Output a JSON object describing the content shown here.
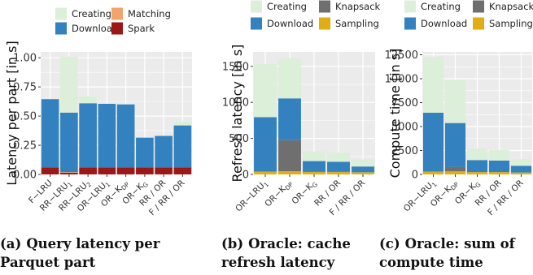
{
  "colors": {
    "Creating": "#dcefd9",
    "Matching": "#f4a469",
    "Download": "#3382bf",
    "Spark": "#9e1717",
    "Knapsack": "#6f6f6f",
    "Sampling": "#e0ad15",
    "panel_bg": "#ebebeb",
    "grid": "#ffffff"
  },
  "captions": [
    {
      "label": "(a)",
      "text": "Query latency per Parquet part"
    },
    {
      "label": "(b)",
      "text": "Oracle: cache refresh latency"
    },
    {
      "label": "(c)",
      "text": "Oracle: sum of compute time"
    }
  ],
  "chart_data": [
    {
      "type": "bar",
      "stacked": true,
      "grid": true,
      "legend_position": "top",
      "legend": [
        {
          "name": "Creating",
          "color_key": "Creating"
        },
        {
          "name": "Matching",
          "color_key": "Matching"
        },
        {
          "name": "Download",
          "color_key": "Download"
        },
        {
          "name": "Spark",
          "color_key": "Spark"
        }
      ],
      "ylabel": "Latency per part [in s]",
      "ylim": [
        0,
        1.05
      ],
      "yticks": [
        0.0,
        0.25,
        0.5,
        0.75,
        1.0
      ],
      "ytick_labels": [
        "0.00",
        "0.25",
        "0.50",
        "0.75",
        "1.00"
      ],
      "categories": [
        {
          "base": "F−LRU",
          "sub": ""
        },
        {
          "base": "RR−LRU",
          "sub": "1"
        },
        {
          "base": "RR−LRU",
          "sub": "2"
        },
        {
          "base": "OR−LRU",
          "sub": "1"
        },
        {
          "base": "OR−K",
          "sub": "DP"
        },
        {
          "base": "OR−K",
          "sub": "G"
        },
        {
          "base": "RR / OR",
          "sub": ""
        },
        {
          "base": "F / RR / OR",
          "sub": ""
        }
      ],
      "series": [
        {
          "name": "Spark",
          "values": [
            0.06,
            0.015,
            0.06,
            0.06,
            0.06,
            0.06,
            0.06,
            0.06
          ]
        },
        {
          "name": "Matching",
          "values": [
            0.0,
            0.005,
            0.0,
            0.0,
            0.0,
            0.0,
            0.0,
            0.0
          ]
        },
        {
          "name": "Download",
          "values": [
            0.585,
            0.51,
            0.55,
            0.545,
            0.54,
            0.255,
            0.27,
            0.36
          ]
        },
        {
          "name": "Creating",
          "values": [
            0.0,
            0.48,
            0.06,
            0.0,
            0.0,
            0.0,
            0.0,
            0.03
          ]
        }
      ]
    },
    {
      "type": "bar",
      "stacked": true,
      "grid": true,
      "legend_position": "top",
      "legend": [
        {
          "name": "Creating",
          "color_key": "Creating"
        },
        {
          "name": "Knapsack",
          "color_key": "Knapsack"
        },
        {
          "name": "Download",
          "color_key": "Download"
        },
        {
          "name": "Sampling",
          "color_key": "Sampling"
        }
      ],
      "ylabel": "Refresh latency [in s]",
      "ylim": [
        0,
        1700
      ],
      "yticks": [
        0,
        500,
        1000,
        1500
      ],
      "ytick_labels": [
        "0",
        "500",
        "1000",
        "1500"
      ],
      "categories": [
        {
          "base": "OR−LRU",
          "sub": "1"
        },
        {
          "base": "OR−K",
          "sub": "DP"
        },
        {
          "base": "OR−K",
          "sub": "G"
        },
        {
          "base": "RR / OR",
          "sub": ""
        },
        {
          "base": "F / RR / OR",
          "sub": ""
        }
      ],
      "series": [
        {
          "name": "Sampling",
          "values": [
            40,
            45,
            35,
            35,
            30
          ]
        },
        {
          "name": "Knapsack",
          "values": [
            0,
            430,
            0,
            0,
            0
          ]
        },
        {
          "name": "Download",
          "values": [
            755,
            580,
            150,
            140,
            80
          ]
        },
        {
          "name": "Creating",
          "values": [
            735,
            555,
            135,
            130,
            100
          ]
        }
      ]
    },
    {
      "type": "bar",
      "stacked": true,
      "grid": true,
      "legend_position": "top",
      "legend": [
        {
          "name": "Creating",
          "color_key": "Creating"
        },
        {
          "name": "Knapsack",
          "color_key": "Knapsack"
        },
        {
          "name": "Download",
          "color_key": "Download"
        },
        {
          "name": "Sampling",
          "color_key": "Sampling"
        }
      ],
      "ylabel": "Compute time [in s]",
      "ylim": [
        0,
        12800
      ],
      "yticks": [
        0,
        2500,
        5000,
        7500,
        10000,
        12500
      ],
      "ytick_labels": [
        "0",
        "2500",
        "5000",
        "7500",
        "10000",
        "12500"
      ],
      "categories": [
        {
          "base": "OR−LRU",
          "sub": "1"
        },
        {
          "base": "OR−K",
          "sub": "DP"
        },
        {
          "base": "OR−K",
          "sub": "G"
        },
        {
          "base": "RR / OR",
          "sub": ""
        },
        {
          "base": "F / RR / OR",
          "sub": ""
        }
      ],
      "series": [
        {
          "name": "Sampling",
          "values": [
            300,
            320,
            250,
            250,
            200
          ]
        },
        {
          "name": "Knapsack",
          "values": [
            0,
            450,
            0,
            0,
            0
          ]
        },
        {
          "name": "Download",
          "values": [
            6150,
            4600,
            1250,
            1200,
            700
          ]
        },
        {
          "name": "Creating",
          "values": [
            5850,
            4500,
            1200,
            1100,
            700
          ]
        }
      ]
    }
  ]
}
